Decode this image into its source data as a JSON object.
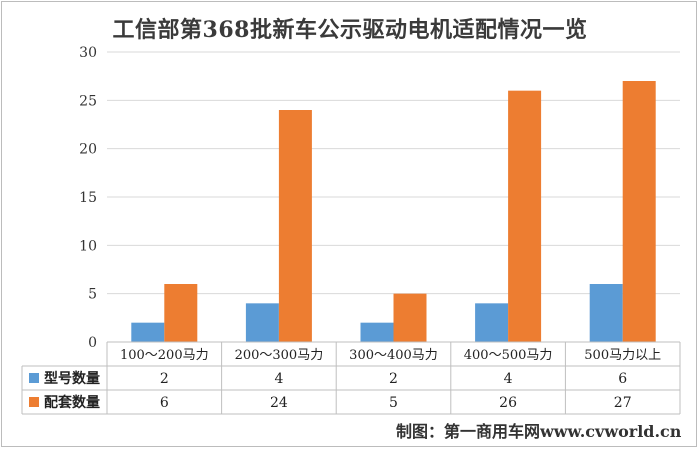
{
  "chart_data": {
    "type": "bar",
    "title": "工信部第368批新车公示驱动电机适配情况一览",
    "categories": [
      "100～200马力",
      "200～300马力",
      "300～400马力",
      "400～500马力",
      "500马力以上"
    ],
    "series": [
      {
        "name": "型号数量",
        "values": [
          2,
          4,
          2,
          4,
          6
        ],
        "color": "#5b9bd5"
      },
      {
        "name": "配套数量",
        "values": [
          6,
          24,
          5,
          26,
          27
        ],
        "color": "#ed7d31"
      }
    ],
    "ylim": [
      0,
      30
    ],
    "yticks": [
      0,
      5,
      10,
      15,
      20,
      25,
      30
    ],
    "grid": true,
    "legend": "data-table",
    "data_table": true
  },
  "credit": "制图：第一商用车网www.cvworld.cn"
}
